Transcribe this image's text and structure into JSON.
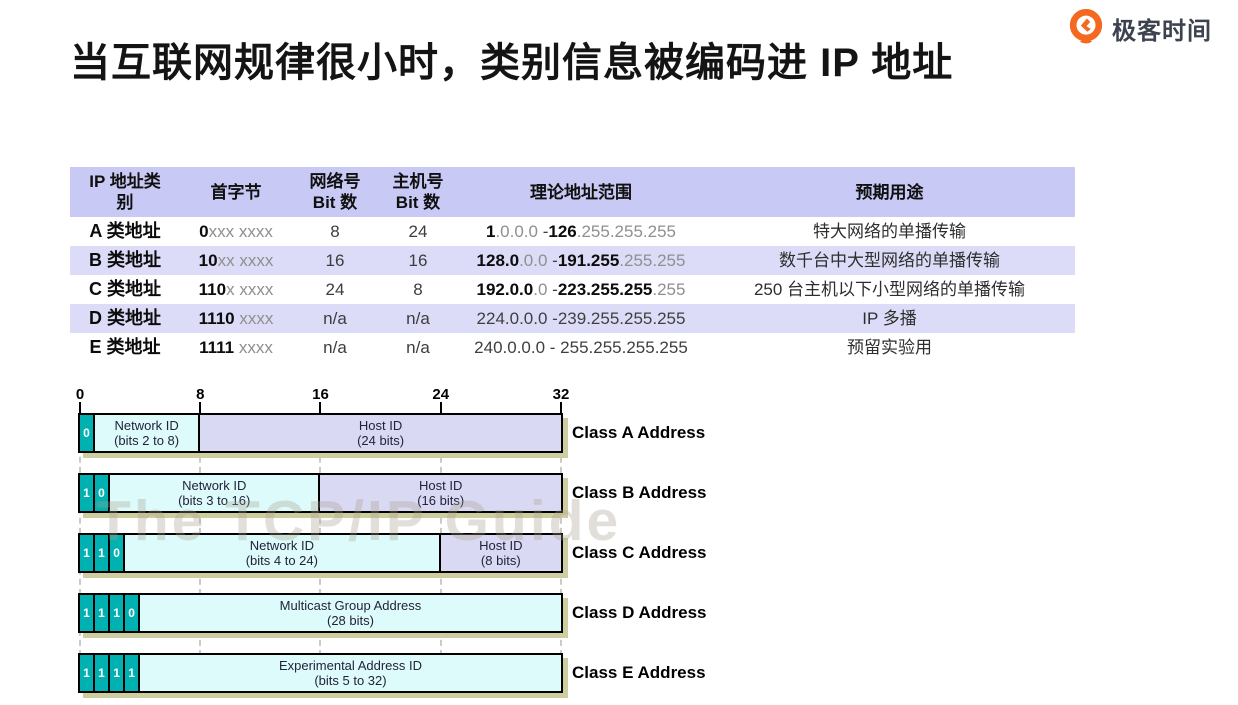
{
  "logo": {
    "text": "极客时间"
  },
  "title": "当互联网规律很小时，类别信息被编码进 IP 地址",
  "watermark": "The TCP/IP Guide",
  "colors": {
    "teal": "#00b1b1",
    "cyan": "#ddfbfb",
    "lavender": "#d9d9f3",
    "table_header": "#c8c9f4",
    "table_stripe": "#dcdcf8",
    "shadow": "#cdcd9f",
    "brand_orange": "#f4691f",
    "gray_text": "#8f8f8f"
  },
  "table": {
    "headers": [
      "IP 地址类\n别",
      "首字节",
      "网络号\nBit 数",
      "主机号\nBit 数",
      "理论地址范围",
      "预期用途"
    ],
    "rows": [
      {
        "name": "A 类地址",
        "first_byte": [
          [
            "0",
            "b"
          ],
          [
            "xxx xxxx",
            "g"
          ]
        ],
        "network_bits": "8",
        "host_bits": "24",
        "range": [
          [
            "1",
            "b"
          ],
          [
            ".0.0.0",
            "g"
          ],
          [
            " -",
            "n"
          ],
          [
            "126",
            "b"
          ],
          [
            ".255.255.255",
            "g"
          ]
        ],
        "usage": "特大网络的单播传输"
      },
      {
        "name": "B 类地址",
        "first_byte": [
          [
            "10",
            "b"
          ],
          [
            "xx xxxx",
            "g"
          ]
        ],
        "network_bits": "16",
        "host_bits": "16",
        "range": [
          [
            "128.0",
            "b"
          ],
          [
            ".0.0",
            "g"
          ],
          [
            " -",
            "n"
          ],
          [
            "191.255",
            "b"
          ],
          [
            ".255.255",
            "g"
          ]
        ],
        "usage": "数千台中大型网络的单播传输"
      },
      {
        "name": "C 类地址",
        "first_byte": [
          [
            "110",
            "b"
          ],
          [
            "x xxxx",
            "g"
          ]
        ],
        "network_bits": "24",
        "host_bits": "8",
        "range": [
          [
            "192.0.0",
            "b"
          ],
          [
            ".0",
            "g"
          ],
          [
            " -",
            "n"
          ],
          [
            "223.255.255",
            "b"
          ],
          [
            ".255",
            "g"
          ]
        ],
        "usage": "250 台主机以下小型网络的单播传输"
      },
      {
        "name": "D 类地址",
        "first_byte": [
          [
            "1110",
            "b"
          ],
          [
            " xxxx",
            "g"
          ]
        ],
        "network_bits": "n/a",
        "host_bits": "n/a",
        "range": [
          [
            "224.0.0.0 -239.255.255.255",
            "n"
          ]
        ],
        "usage": "IP 多播"
      },
      {
        "name": "E 类地址",
        "first_byte": [
          [
            "1111",
            "b"
          ],
          [
            " xxxx",
            "g"
          ]
        ],
        "network_bits": "n/a",
        "host_bits": "n/a",
        "range": [
          [
            "240.0.0.0 - 255.255.255.255",
            "n"
          ]
        ],
        "usage": "预留实验用"
      }
    ]
  },
  "diagram": {
    "ruler": [
      "0",
      "8",
      "16",
      "24",
      "32"
    ],
    "bits_total": 32,
    "rows": [
      {
        "label": "Class A Address",
        "bits": [
          "0"
        ],
        "segments": [
          {
            "title": "Network ID",
            "sub": "(bits 2 to 8)",
            "bits": 7,
            "color": "cyan"
          },
          {
            "title": "Host ID",
            "sub": "(24 bits)",
            "bits": 24,
            "color": "lavender"
          }
        ]
      },
      {
        "label": "Class B Address",
        "bits": [
          "1",
          "0"
        ],
        "segments": [
          {
            "title": "Network ID",
            "sub": "(bits 3 to 16)",
            "bits": 14,
            "color": "cyan"
          },
          {
            "title": "Host ID",
            "sub": "(16 bits)",
            "bits": 16,
            "color": "lavender"
          }
        ]
      },
      {
        "label": "Class C Address",
        "bits": [
          "1",
          "1",
          "0"
        ],
        "segments": [
          {
            "title": "Network ID",
            "sub": "(bits 4 to 24)",
            "bits": 21,
            "color": "cyan"
          },
          {
            "title": "Host ID",
            "sub": "(8 bits)",
            "bits": 8,
            "color": "lavender"
          }
        ]
      },
      {
        "label": "Class D Address",
        "bits": [
          "1",
          "1",
          "1",
          "0"
        ],
        "segments": [
          {
            "title": "Multicast Group Address",
            "sub": "(28 bits)",
            "bits": 28,
            "color": "cyan"
          }
        ]
      },
      {
        "label": "Class E Address",
        "bits": [
          "1",
          "1",
          "1",
          "1"
        ],
        "segments": [
          {
            "title": "Experimental Address ID",
            "sub": "(bits 5 to 32)",
            "bits": 28,
            "color": "cyan"
          }
        ]
      }
    ]
  }
}
